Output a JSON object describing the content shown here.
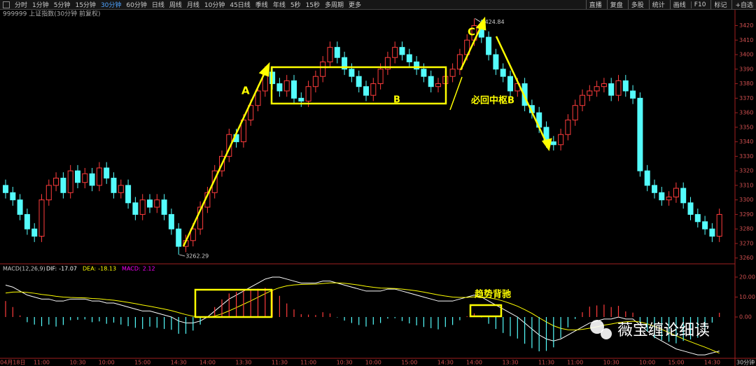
{
  "toolbar": {
    "left": [
      "分时",
      "1分钟",
      "5分钟",
      "15分钟",
      "30分钟",
      "60分钟",
      "日线",
      "周线",
      "月线",
      "10分钟",
      "45日线",
      "季线",
      "年线",
      "5秒",
      "15秒",
      "多周期",
      "更多"
    ],
    "active": 4,
    "right": [
      "直播",
      "复盘",
      "多股",
      "统计",
      "画线",
      "F10",
      "标记",
      "+自选"
    ]
  },
  "header": "999999 上证指数(30分钟 前复权)",
  "period_label": "30分钟",
  "annotations": {
    "a": "A",
    "b": "B",
    "c": "C",
    "back_to_center": "必回中枢B",
    "divergence": "趋势背驰",
    "watermark": "薇宝缠论细读"
  },
  "chart_data": [
    {
      "type": "candlestick",
      "categories": [
        null,
        "04月18日",
        null,
        null,
        null,
        "11:00",
        null,
        null,
        null,
        null,
        "10:30",
        null,
        null,
        null,
        "10:00",
        null,
        null,
        null,
        null,
        "15:00",
        null,
        null,
        null,
        null,
        "14:30",
        null,
        null,
        null,
        "14:00",
        null,
        null,
        null,
        null,
        "13:30",
        null,
        null,
        null,
        null,
        "11:30",
        null,
        null,
        null,
        "11:00",
        null,
        null,
        null,
        null,
        "10:30",
        null,
        null,
        null,
        "10:00",
        null,
        null,
        null,
        null,
        "15:00",
        null,
        null,
        null,
        null,
        "14:30",
        null,
        null,
        null,
        "14:00",
        null,
        null,
        null,
        null,
        "13:30",
        null,
        null,
        null,
        null,
        "11:30",
        null,
        null,
        null,
        "11:00",
        null,
        null,
        null,
        null,
        "10:30",
        null,
        null,
        null,
        null,
        "10:00",
        null,
        null,
        null,
        "15:00",
        null,
        null,
        null,
        null,
        "14:30",
        null
      ],
      "open": [
        3310,
        3305,
        3300,
        3290,
        3280,
        3275,
        3300,
        3310,
        3315,
        3305,
        3320,
        3312,
        3318,
        3310,
        3322,
        3315,
        3305,
        3310,
        3298,
        3290,
        3300,
        3295,
        3300,
        3290,
        3280,
        3268,
        3272,
        3280,
        3295,
        3305,
        3320,
        3330,
        3345,
        3340,
        3355,
        3365,
        3375,
        3388,
        3380,
        3375,
        3382,
        3370,
        3368,
        3378,
        3385,
        3395,
        3405,
        3398,
        3390,
        3385,
        3378,
        3372,
        3380,
        3390,
        3398,
        3405,
        3400,
        3395,
        3390,
        3385,
        3378,
        3380,
        3385,
        3390,
        3400,
        3410,
        3420,
        3412,
        3400,
        3390,
        3385,
        3375,
        3380,
        3365,
        3360,
        3350,
        3340,
        3338,
        3345,
        3355,
        3365,
        3372,
        3375,
        3378,
        3380,
        3372,
        3382,
        3375,
        3370,
        3320,
        3310,
        3305,
        3300,
        3302,
        3308,
        3298,
        3290,
        3285,
        3280,
        3275
      ],
      "high": [
        3314,
        3309,
        3304,
        3294,
        3284,
        3304,
        3314,
        3319,
        3319,
        3324,
        3324,
        3322,
        3322,
        3326,
        3326,
        3319,
        3314,
        3314,
        3302,
        3304,
        3304,
        3304,
        3304,
        3294,
        3284,
        3276,
        3284,
        3299,
        3309,
        3324,
        3334,
        3349,
        3349,
        3359,
        3369,
        3379,
        3392,
        3392,
        3384,
        3386,
        3386,
        3374,
        3382,
        3389,
        3399,
        3409,
        3409,
        3402,
        3394,
        3389,
        3382,
        3384,
        3394,
        3402,
        3409,
        3409,
        3404,
        3399,
        3394,
        3389,
        3384,
        3389,
        3394,
        3404,
        3414,
        3424.84,
        3424,
        3416,
        3404,
        3394,
        3389,
        3384,
        3384,
        3369,
        3364,
        3354,
        3344,
        3349,
        3359,
        3369,
        3376,
        3379,
        3382,
        3384,
        3384,
        3386,
        3386,
        3379,
        3374,
        3324,
        3314,
        3309,
        3306,
        3312,
        3312,
        3302,
        3294,
        3289,
        3284,
        3294
      ],
      "low": [
        3301,
        3296,
        3286,
        3276,
        3271,
        3271,
        3296,
        3306,
        3301,
        3301,
        3308,
        3308,
        3306,
        3306,
        3311,
        3301,
        3301,
        3294,
        3286,
        3286,
        3291,
        3291,
        3286,
        3276,
        3262.29,
        3264,
        3268,
        3276,
        3291,
        3301,
        3316,
        3326,
        3336,
        3336,
        3351,
        3361,
        3371,
        3376,
        3371,
        3371,
        3366,
        3364,
        3364,
        3374,
        3381,
        3391,
        3394,
        3386,
        3381,
        3374,
        3368,
        3368,
        3376,
        3386,
        3394,
        3396,
        3391,
        3386,
        3381,
        3374,
        3374,
        3376,
        3381,
        3386,
        3396,
        3406,
        3408,
        3396,
        3386,
        3381,
        3371,
        3371,
        3361,
        3356,
        3346,
        3336,
        3334,
        3334,
        3341,
        3351,
        3361,
        3368,
        3371,
        3374,
        3368,
        3368,
        3371,
        3366,
        3316,
        3306,
        3301,
        3296,
        3296,
        3298,
        3294,
        3286,
        3281,
        3276,
        3271,
        3271
      ],
      "close": [
        3305,
        3300,
        3290,
        3280,
        3275,
        3300,
        3310,
        3315,
        3305,
        3320,
        3312,
        3318,
        3310,
        3322,
        3315,
        3305,
        3310,
        3298,
        3290,
        3300,
        3295,
        3300,
        3290,
        3280,
        3268,
        3272,
        3280,
        3295,
        3305,
        3320,
        3330,
        3345,
        3340,
        3355,
        3365,
        3375,
        3388,
        3380,
        3375,
        3382,
        3370,
        3368,
        3378,
        3385,
        3395,
        3405,
        3398,
        3390,
        3385,
        3378,
        3372,
        3380,
        3390,
        3398,
        3405,
        3400,
        3395,
        3390,
        3385,
        3378,
        3380,
        3385,
        3390,
        3400,
        3410,
        3420,
        3412,
        3400,
        3390,
        3385,
        3375,
        3380,
        3365,
        3360,
        3350,
        3340,
        3338,
        3345,
        3355,
        3365,
        3372,
        3375,
        3378,
        3380,
        3372,
        3382,
        3375,
        3370,
        3320,
        3310,
        3305,
        3300,
        3302,
        3308,
        3298,
        3290,
        3285,
        3280,
        3275,
        3290
      ],
      "up_color": "#ff3c3c",
      "down_color": "#54fcfc",
      "ylim": [
        3256,
        3427
      ],
      "yticks": [
        3260,
        3270,
        3280,
        3290,
        3300,
        3310,
        3320,
        3330,
        3340,
        3350,
        3360,
        3370,
        3380,
        3390,
        3400,
        3410,
        3420
      ]
    },
    {
      "type": "macd",
      "title": "MACD(12,26,9)",
      "series": [
        {
          "name": "DIF:",
          "color": "#ffffff",
          "values": [
            16,
            15,
            13,
            11,
            10,
            9,
            9,
            8,
            8,
            9,
            9,
            9,
            8,
            8,
            7,
            7,
            6,
            5,
            4,
            3,
            3,
            2,
            1,
            0,
            -2,
            -3,
            -3,
            -2,
            0,
            3,
            6,
            9,
            11,
            13,
            15,
            17,
            19,
            20,
            20,
            19,
            18,
            17,
            17,
            17,
            18,
            18,
            17,
            16,
            15,
            14,
            13,
            13,
            13,
            14,
            14,
            13,
            12,
            11,
            10,
            9,
            8,
            8,
            8,
            9,
            10,
            11,
            10,
            8,
            6,
            4,
            2,
            0,
            -3,
            -6,
            -9,
            -11,
            -12,
            -11,
            -9,
            -7,
            -5,
            -3,
            -2,
            -1,
            -1,
            0,
            -1,
            -1,
            -4,
            -7,
            -10,
            -12,
            -14,
            -16,
            -17,
            -18,
            -19,
            -19,
            -18,
            -17.07
          ]
        },
        {
          "name": "DEA:",
          "color": "#ffff00",
          "values": [
            12,
            12.5,
            12.6,
            12.3,
            11.9,
            11.3,
            10.9,
            10.4,
            10,
            9.8,
            9.7,
            9.6,
            9.3,
            9.1,
            8.7,
            8.4,
            7.9,
            7.3,
            6.7,
            6,
            5.4,
            4.7,
            4,
            3.2,
            2.2,
            1.2,
            0.4,
            -0.1,
            -0.1,
            0.5,
            1.6,
            3.1,
            4.7,
            6.4,
            8.1,
            9.9,
            11.7,
            13.4,
            14.7,
            15.6,
            16.1,
            16.3,
            16.4,
            16.5,
            16.8,
            17.1,
            17.1,
            16.9,
            16.5,
            16,
            15.4,
            14.9,
            14.5,
            14.4,
            14.3,
            14,
            13.6,
            13.1,
            12.5,
            11.8,
            11.1,
            10.5,
            10,
            9.8,
            9.8,
            10.1,
            10.1,
            9.7,
            9,
            8,
            6.8,
            5.4,
            3.7,
            1.8,
            -0.4,
            -2.5,
            -4.4,
            -5.7,
            -6.4,
            -6.5,
            -6.2,
            -5.6,
            -4.9,
            -4.1,
            -3.5,
            -2.8,
            -2.4,
            -2.1,
            -2.5,
            -3.4,
            -4.7,
            -6.2,
            -7.8,
            -9.4,
            -11,
            -12.4,
            -13.8,
            -15.1,
            -16.6,
            -18.13
          ]
        },
        {
          "name": "MACD:",
          "color": "#ff00ff",
          "up_color": "#ff3c3c",
          "down_color": "#54fcfc",
          "values": [
            8,
            5,
            0.8,
            -2.6,
            -3.8,
            -4.6,
            -3.8,
            -4.8,
            -4,
            -1.6,
            -1.4,
            -1.2,
            -2.6,
            -2.2,
            -3.4,
            -2.8,
            -3.8,
            -4.6,
            -5.4,
            -6,
            -4.8,
            -5.4,
            -6,
            -6.4,
            -8.4,
            -8.4,
            -6.8,
            -3.8,
            0.2,
            5,
            8.8,
            11.8,
            12.6,
            13.2,
            13.8,
            14.2,
            14.6,
            13.2,
            10.6,
            6.8,
            3.8,
            1.4,
            1.2,
            1,
            2.4,
            1.8,
            -0.2,
            -1.8,
            -3,
            -4,
            -4.8,
            -3.8,
            -3,
            -0.8,
            -0.6,
            -2,
            -3.2,
            -4.2,
            -5,
            -5.6,
            -6.2,
            -5,
            -4,
            -1.6,
            0.4,
            1.8,
            -0.2,
            -3.4,
            -6,
            -8,
            -9.6,
            -10.8,
            -13.4,
            -15.6,
            -17.2,
            -17,
            -15.2,
            -10.6,
            -5.2,
            -1,
            2.4,
            5.2,
            5.8,
            6.2,
            5,
            5.6,
            2.8,
            2.2,
            -3,
            -7.2,
            -10.6,
            -11.6,
            -12.4,
            -13.2,
            -12,
            -11.2,
            -10.4,
            -7.8,
            -2.8,
            2.12
          ]
        }
      ],
      "ylim": [
        -20.7,
        24.9
      ],
      "yticks": [
        {
          "value": 0,
          "label": "0.00"
        },
        {
          "value": 10,
          "label": "10.00"
        },
        {
          "value": 20,
          "label": "20.00"
        }
      ]
    }
  ]
}
